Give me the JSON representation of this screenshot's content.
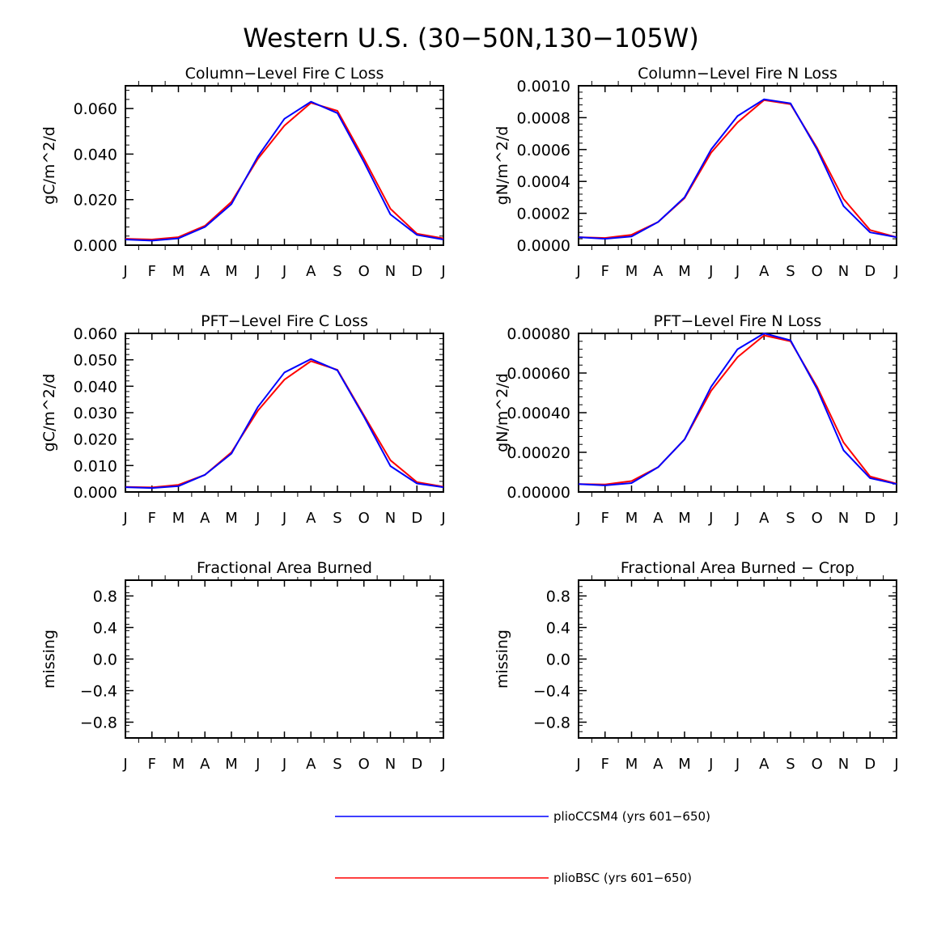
{
  "figure": {
    "title": "Western U.S. (30−50N,130−105W)",
    "colors": {
      "series_1": "#0000ff",
      "series_2": "#ff0000",
      "axis": "#000000"
    }
  },
  "legend": {
    "entries": [
      {
        "label": "plioCCSM4 (yrs 601−650)",
        "color": "#0000ff"
      },
      {
        "label": "plioBSC (yrs 601−650)",
        "color": "#ff0000"
      }
    ]
  },
  "chart_data": [
    {
      "type": "line",
      "title": "Column−Level Fire C Loss",
      "ylabel": "gC/m^2/d",
      "xlabel": "",
      "categories": [
        "J",
        "F",
        "M",
        "A",
        "M",
        "J",
        "J",
        "A",
        "S",
        "O",
        "N",
        "D",
        "J"
      ],
      "ylim": [
        0,
        0.07
      ],
      "yticks": [
        0,
        0.02,
        0.04,
        0.06
      ],
      "ytick_labels": [
        "0.000",
        "0.020",
        "0.040",
        "0.060"
      ],
      "series": [
        {
          "name": "plioCCSM4 (yrs 601−650)",
          "color": "#0000ff",
          "values": [
            0.0025,
            0.002,
            0.003,
            0.008,
            0.018,
            0.039,
            0.0555,
            0.063,
            0.058,
            0.0365,
            0.0135,
            0.0045,
            0.0025
          ]
        },
        {
          "name": "plioBSC (yrs 601−650)",
          "color": "#ff0000",
          "values": [
            0.0028,
            0.0025,
            0.0035,
            0.0085,
            0.019,
            0.038,
            0.0525,
            0.0625,
            0.059,
            0.038,
            0.016,
            0.005,
            0.003
          ]
        }
      ]
    },
    {
      "type": "line",
      "title": "Column−Level Fire N Loss",
      "ylabel": "gN/m^2/d",
      "xlabel": "",
      "categories": [
        "J",
        "F",
        "M",
        "A",
        "M",
        "J",
        "J",
        "A",
        "S",
        "O",
        "N",
        "D",
        "J"
      ],
      "ylim": [
        0,
        0.001
      ],
      "yticks": [
        0,
        0.0002,
        0.0004,
        0.0006,
        0.0008,
        0.001
      ],
      "ytick_labels": [
        "0.0000",
        "0.0002",
        "0.0004",
        "0.0006",
        "0.0008",
        "0.0010"
      ],
      "series": [
        {
          "name": "plioCCSM4 (yrs 601−650)",
          "color": "#0000ff",
          "values": [
            5e-05,
            4e-05,
            5.5e-05,
            0.000145,
            0.0003,
            0.0006,
            0.00081,
            0.000915,
            0.00089,
            0.0006,
            0.000245,
            8e-05,
            5e-05
          ]
        },
        {
          "name": "plioBSC (yrs 601−650)",
          "color": "#ff0000",
          "values": [
            5e-05,
            4.5e-05,
            6.5e-05,
            0.000145,
            0.000295,
            0.00058,
            0.00077,
            0.00091,
            0.000885,
            0.00061,
            0.00029,
            9.5e-05,
            5e-05
          ]
        }
      ]
    },
    {
      "type": "line",
      "title": "PFT−Level Fire C Loss",
      "ylabel": "gC/m^2/d",
      "xlabel": "",
      "categories": [
        "J",
        "F",
        "M",
        "A",
        "M",
        "J",
        "J",
        "A",
        "S",
        "O",
        "N",
        "D",
        "J"
      ],
      "ylim": [
        0,
        0.06
      ],
      "yticks": [
        0,
        0.01,
        0.02,
        0.03,
        0.04,
        0.05,
        0.06
      ],
      "ytick_labels": [
        "0.000",
        "0.010",
        "0.020",
        "0.030",
        "0.040",
        "0.050",
        "0.060"
      ],
      "series": [
        {
          "name": "plioCCSM4 (yrs 601−650)",
          "color": "#0000ff",
          "values": [
            0.0018,
            0.0015,
            0.0022,
            0.0065,
            0.0145,
            0.0322,
            0.0452,
            0.0503,
            0.046,
            0.0285,
            0.0098,
            0.0032,
            0.0018
          ]
        },
        {
          "name": "plioBSC (yrs 601−650)",
          "color": "#ff0000",
          "values": [
            0.0019,
            0.0017,
            0.0027,
            0.0065,
            0.015,
            0.0308,
            0.0425,
            0.0495,
            0.0462,
            0.029,
            0.012,
            0.0037,
            0.002
          ]
        }
      ]
    },
    {
      "type": "line",
      "title": "PFT−Level Fire N Loss",
      "ylabel": "gN/m^2/d",
      "xlabel": "",
      "categories": [
        "J",
        "F",
        "M",
        "A",
        "M",
        "J",
        "J",
        "A",
        "S",
        "O",
        "N",
        "D",
        "J"
      ],
      "ylim": [
        0,
        0.0008
      ],
      "yticks": [
        0,
        0.0002,
        0.0004,
        0.0006,
        0.0008
      ],
      "ytick_labels": [
        "0.00000",
        "0.00020",
        "0.00040",
        "0.00060",
        "0.00080"
      ],
      "series": [
        {
          "name": "plioCCSM4 (yrs 601−650)",
          "color": "#0000ff",
          "values": [
            4e-05,
            3.3e-05,
            4.5e-05,
            0.000125,
            0.000265,
            0.00053,
            0.00072,
            0.0008,
            0.000765,
            0.00052,
            0.00021,
            7e-05,
            4e-05
          ]
        },
        {
          "name": "plioBSC (yrs 601−650)",
          "color": "#ff0000",
          "values": [
            4e-05,
            3.8e-05,
            5.5e-05,
            0.000125,
            0.000265,
            0.00051,
            0.00068,
            0.00079,
            0.00076,
            0.00053,
            0.00025,
            7.8e-05,
            4.2e-05
          ]
        }
      ]
    },
    {
      "type": "line",
      "title": "Fractional Area Burned",
      "ylabel": "missing",
      "xlabel": "",
      "categories": [
        "J",
        "F",
        "M",
        "A",
        "M",
        "J",
        "J",
        "A",
        "S",
        "O",
        "N",
        "D",
        "J"
      ],
      "ylim": [
        -1,
        1
      ],
      "yticks": [
        -0.8,
        -0.4,
        0,
        0.4,
        0.8
      ],
      "ytick_labels": [
        "−0.8",
        "−0.4",
        "0.0",
        "0.4",
        "0.8"
      ],
      "series": []
    },
    {
      "type": "line",
      "title": "Fractional Area Burned − Crop",
      "ylabel": "missing",
      "xlabel": "",
      "categories": [
        "J",
        "F",
        "M",
        "A",
        "M",
        "J",
        "J",
        "A",
        "S",
        "O",
        "N",
        "D",
        "J"
      ],
      "ylim": [
        -1,
        1
      ],
      "yticks": [
        -0.8,
        -0.4,
        0,
        0.4,
        0.8
      ],
      "ytick_labels": [
        "−0.8",
        "−0.4",
        "0.0",
        "0.4",
        "0.8"
      ],
      "series": []
    }
  ]
}
